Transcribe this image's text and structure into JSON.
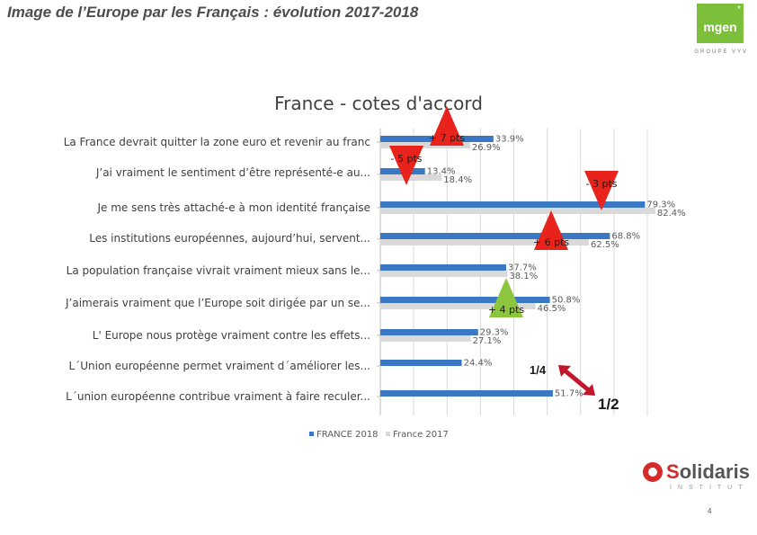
{
  "page": {
    "title": "Image de l’Europe par les Français : évolution 2017-2018",
    "page_number": "4"
  },
  "logos": {
    "mgen_text": "mgen",
    "mgen_star": "*",
    "mgen_sub": "GROUPE VYV",
    "solidaris_first": "S",
    "solidaris_rest": "olidaris",
    "solidaris_sub": "INSTITUT"
  },
  "chart_data": {
    "type": "bar",
    "orientation": "horizontal",
    "title": "France - cotes d'accord",
    "categories": [
      "La France devrait quitter la zone euro et revenir au franc",
      "J’ai vraiment le sentiment d’être représenté-e au...",
      "Je me sens très attaché-e à mon identité française",
      "Les institutions européennes, aujourd’hui, servent...",
      "La population française vivrait vraiment mieux sans le...",
      "J’aimerais vraiment que l’Europe soit dirigée par un se...",
      "L' Europe nous protège vraiment contre les effets...",
      "L´Union européenne permet vraiment d´améliorer les...",
      "L´union européenne contribue vraiment à faire reculer..."
    ],
    "series": [
      {
        "name": "FRANCE 2018",
        "color": "#3a78c3",
        "values": [
          33.9,
          13.4,
          79.3,
          68.8,
          37.7,
          50.8,
          29.3,
          24.4,
          51.7
        ],
        "labels": [
          "33.9%",
          "13.4%",
          "79.3%",
          "68.8%",
          "37.7%",
          "50.8%",
          "29.3%",
          "24.4%",
          "51.7%"
        ]
      },
      {
        "name": "France 2017",
        "color": "#d9d9d9",
        "values": [
          26.9,
          18.4,
          82.4,
          62.5,
          38.1,
          46.5,
          27.1,
          null,
          null
        ],
        "labels": [
          "26.9%",
          "18.4%",
          "82.4%",
          "62.5%",
          "38.1%",
          "46.5%",
          "27.1%",
          null,
          null
        ]
      }
    ],
    "xlim": [
      0,
      80
    ],
    "grid": true,
    "legend": "bottom",
    "annotations": [
      {
        "category_index": 0,
        "text": "+ 7 pts",
        "shape": "triangle-up",
        "color": "#e8231c"
      },
      {
        "category_index": 1,
        "text": "- 5 pts",
        "shape": "triangle-down",
        "color": "#e8231c"
      },
      {
        "category_index": 2,
        "text": "- 3 pts",
        "shape": "triangle-down",
        "color": "#e8231c"
      },
      {
        "category_index": 3,
        "text": "+ 6 pts",
        "shape": "triangle-up",
        "color": "#e8231c"
      },
      {
        "category_index": 5,
        "text": "+ 4 pts",
        "shape": "triangle-up",
        "color": "#8cc63f"
      }
    ],
    "fraction_labels": [
      "1/4",
      "1/2"
    ]
  }
}
